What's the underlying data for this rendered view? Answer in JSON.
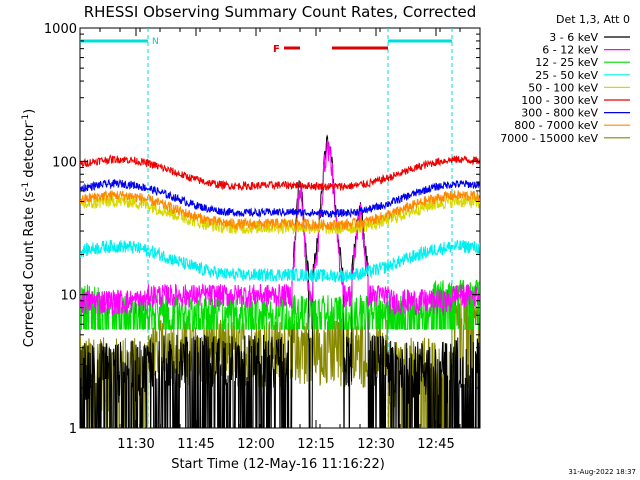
{
  "chart_data": {
    "type": "line",
    "title": "RHESSI Observing Summary Count Rates, Corrected",
    "xlabel": "Start Time (12-May-16 11:16:22)",
    "ylabel_main": "Corrected Count Rate (s",
    "ylabel_sup1": "-1",
    "ylabel_mid": " detector",
    "ylabel_sup2": "-1",
    "ylabel_end": ")",
    "yscale": "log",
    "ylim": [
      1,
      1000
    ],
    "xlim_min": [
      0,
      100
    ],
    "x_ticks": [
      {
        "label": "11:30",
        "min": 14
      },
      {
        "label": "11:45",
        "min": 29
      },
      {
        "label": "12:00",
        "min": 44
      },
      {
        "label": "12:15",
        "min": 59
      },
      {
        "label": "12:30",
        "min": 74
      },
      {
        "label": "12:45",
        "min": 89
      }
    ],
    "y_ticks": [
      {
        "label": "1",
        "value": 1
      },
      {
        "label": "10",
        "value": 10
      },
      {
        "label": "100",
        "value": 100
      },
      {
        "label": "1000",
        "value": 1000
      }
    ],
    "legend_title": "Det 1,3, Att 0",
    "series": [
      {
        "name": "3 - 6 keV",
        "color": "#000000",
        "key": "s1"
      },
      {
        "name": "6 - 12 keV",
        "color": "#ff00ff",
        "key": "s2"
      },
      {
        "name": "12 - 25 keV",
        "color": "#00dd00",
        "key": "s3"
      },
      {
        "name": "25 - 50 keV",
        "color": "#00eeee",
        "key": "s4"
      },
      {
        "name": "50 - 100 keV",
        "color": "#d8d800",
        "key": "s5"
      },
      {
        "name": "100 - 300 keV",
        "color": "#ee0000",
        "key": "s6"
      },
      {
        "name": "300 - 800 keV",
        "color": "#0000ee",
        "key": "s7"
      },
      {
        "name": "800 - 7000 keV",
        "color": "#ff8800",
        "key": "s8"
      },
      {
        "name": "7000 - 15000 keV",
        "color": "#888800",
        "key": "s9"
      }
    ],
    "night_label": "N",
    "flare_label": "F",
    "night_bars": [
      [
        0,
        17
      ],
      [
        77,
        93
      ]
    ],
    "night_boundaries_min": [
      17,
      77,
      93
    ],
    "flare_bars": [
      [
        51,
        55
      ],
      [
        63,
        77
      ]
    ],
    "timestamp": "31-Aug-2022 18:37"
  }
}
